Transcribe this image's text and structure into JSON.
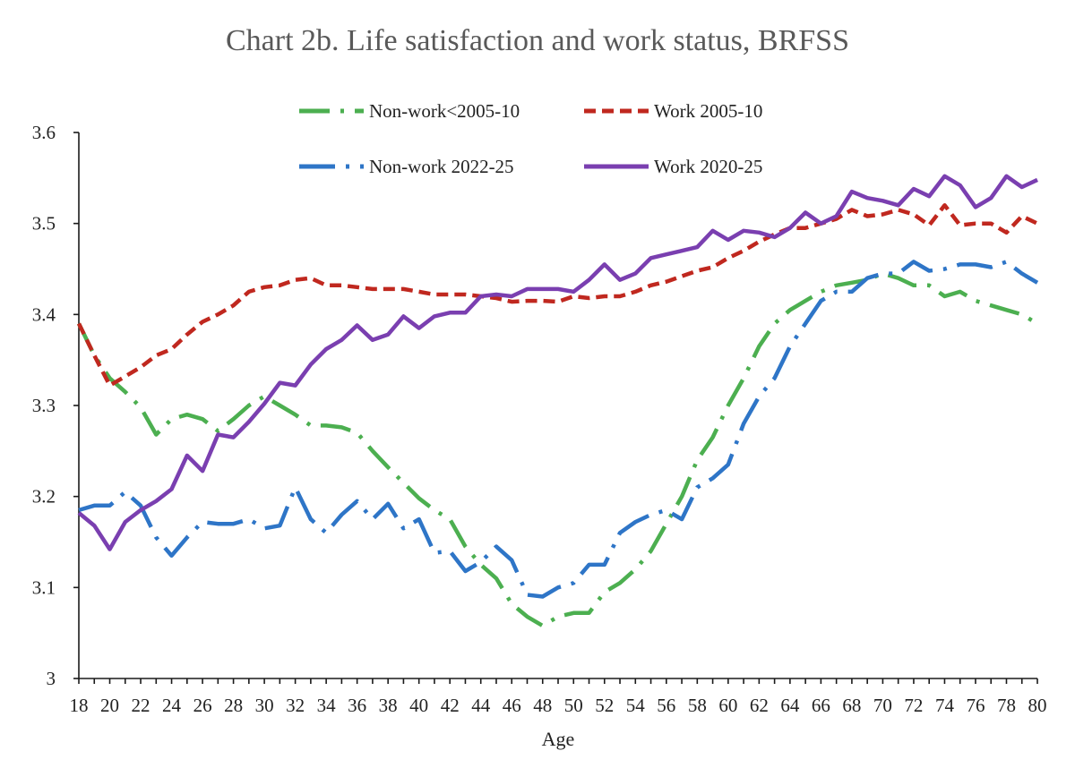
{
  "chart_data": {
    "type": "line",
    "title": "Chart 2b.  Life satisfaction and work status, BRFSS",
    "xlabel": "Age",
    "ylabel": "",
    "xlim": [
      18,
      80
    ],
    "ylim": [
      3,
      3.6
    ],
    "x_ticks": [
      "18",
      "20",
      "22",
      "24",
      "26",
      "28",
      "30",
      "32",
      "34",
      "36",
      "38",
      "40",
      "42",
      "44",
      "46",
      "48",
      "50",
      "52",
      "54",
      "56",
      "58",
      "60",
      "62",
      "64",
      "66",
      "68",
      "70",
      "72",
      "74",
      "76",
      "78",
      "80"
    ],
    "y_ticks": [
      "3",
      "3.1",
      "3.2",
      "3.3",
      "3.4",
      "3.5",
      "3.6"
    ],
    "grid": false,
    "legend_position": "top",
    "x": [
      18,
      19,
      20,
      21,
      22,
      23,
      24,
      25,
      26,
      27,
      28,
      29,
      30,
      31,
      32,
      33,
      34,
      35,
      36,
      37,
      38,
      39,
      40,
      41,
      42,
      43,
      44,
      45,
      46,
      47,
      48,
      49,
      50,
      51,
      52,
      53,
      54,
      55,
      56,
      57,
      58,
      59,
      60,
      61,
      62,
      63,
      64,
      65,
      66,
      67,
      68,
      69,
      70,
      71,
      72,
      73,
      74,
      75,
      76,
      77,
      78,
      79,
      80
    ],
    "series": [
      {
        "name": "Non-work<2005-10",
        "color": "#4caf50",
        "dash": "dash-dot",
        "values": [
          3.39,
          3.355,
          3.33,
          3.315,
          3.298,
          3.268,
          3.285,
          3.29,
          3.285,
          3.272,
          3.285,
          3.3,
          3.31,
          3.3,
          3.29,
          3.278,
          3.278,
          3.276,
          3.27,
          3.25,
          3.232,
          3.215,
          3.198,
          3.185,
          3.175,
          3.145,
          3.125,
          3.11,
          3.082,
          3.068,
          3.058,
          3.068,
          3.072,
          3.072,
          3.095,
          3.105,
          3.12,
          3.14,
          3.17,
          3.2,
          3.24,
          3.265,
          3.3,
          3.33,
          3.365,
          3.39,
          3.405,
          3.415,
          3.425,
          3.432,
          3.435,
          3.438,
          3.445,
          3.44,
          3.432,
          3.432,
          3.42,
          3.425,
          3.415,
          3.41,
          3.405,
          3.4,
          3.39
        ]
      },
      {
        "name": "Work 2005-10",
        "color": "#c0281f",
        "dash": "dash",
        "values": [
          3.39,
          3.355,
          3.322,
          3.332,
          3.342,
          3.355,
          3.362,
          3.378,
          3.392,
          3.4,
          3.41,
          3.425,
          3.43,
          3.432,
          3.438,
          3.44,
          3.432,
          3.432,
          3.43,
          3.428,
          3.428,
          3.428,
          3.425,
          3.422,
          3.422,
          3.422,
          3.42,
          3.418,
          3.414,
          3.415,
          3.415,
          3.414,
          3.42,
          3.418,
          3.42,
          3.42,
          3.425,
          3.432,
          3.436,
          3.442,
          3.448,
          3.452,
          3.462,
          3.47,
          3.48,
          3.488,
          3.495,
          3.495,
          3.5,
          3.505,
          3.515,
          3.508,
          3.51,
          3.515,
          3.51,
          3.498,
          3.52,
          3.498,
          3.5,
          3.5,
          3.49,
          3.508,
          3.5
        ]
      },
      {
        "name": "Non-work 2022-25",
        "color": "#2e75c7",
        "dash": "long-dash-dot",
        "values": [
          3.185,
          3.19,
          3.19,
          3.205,
          3.19,
          3.155,
          3.135,
          3.155,
          3.172,
          3.17,
          3.17,
          3.175,
          3.165,
          3.168,
          3.21,
          3.175,
          3.16,
          3.18,
          3.195,
          3.175,
          3.192,
          3.165,
          3.175,
          3.138,
          3.14,
          3.118,
          3.128,
          3.145,
          3.13,
          3.092,
          3.09,
          3.1,
          3.105,
          3.125,
          3.125,
          3.16,
          3.172,
          3.18,
          3.185,
          3.175,
          3.21,
          3.22,
          3.235,
          3.28,
          3.31,
          3.33,
          3.365,
          3.39,
          3.415,
          3.425,
          3.425,
          3.44,
          3.445,
          3.445,
          3.458,
          3.448,
          3.45,
          3.455,
          3.455,
          3.452,
          3.458,
          3.445,
          3.435
        ]
      },
      {
        "name": "Work 2020-25",
        "color": "#7a3fb0",
        "dash": "solid",
        "values": [
          3.182,
          3.168,
          3.142,
          3.172,
          3.185,
          3.195,
          3.208,
          3.245,
          3.228,
          3.268,
          3.265,
          3.282,
          3.302,
          3.325,
          3.322,
          3.345,
          3.362,
          3.372,
          3.388,
          3.372,
          3.378,
          3.398,
          3.385,
          3.398,
          3.402,
          3.402,
          3.42,
          3.422,
          3.42,
          3.428,
          3.428,
          3.428,
          3.425,
          3.438,
          3.455,
          3.438,
          3.445,
          3.462,
          3.466,
          3.47,
          3.474,
          3.492,
          3.482,
          3.492,
          3.49,
          3.485,
          3.495,
          3.512,
          3.5,
          3.508,
          3.535,
          3.528,
          3.525,
          3.52,
          3.538,
          3.53,
          3.552,
          3.542,
          3.518,
          3.528,
          3.552,
          3.54,
          3.548
        ]
      }
    ]
  }
}
